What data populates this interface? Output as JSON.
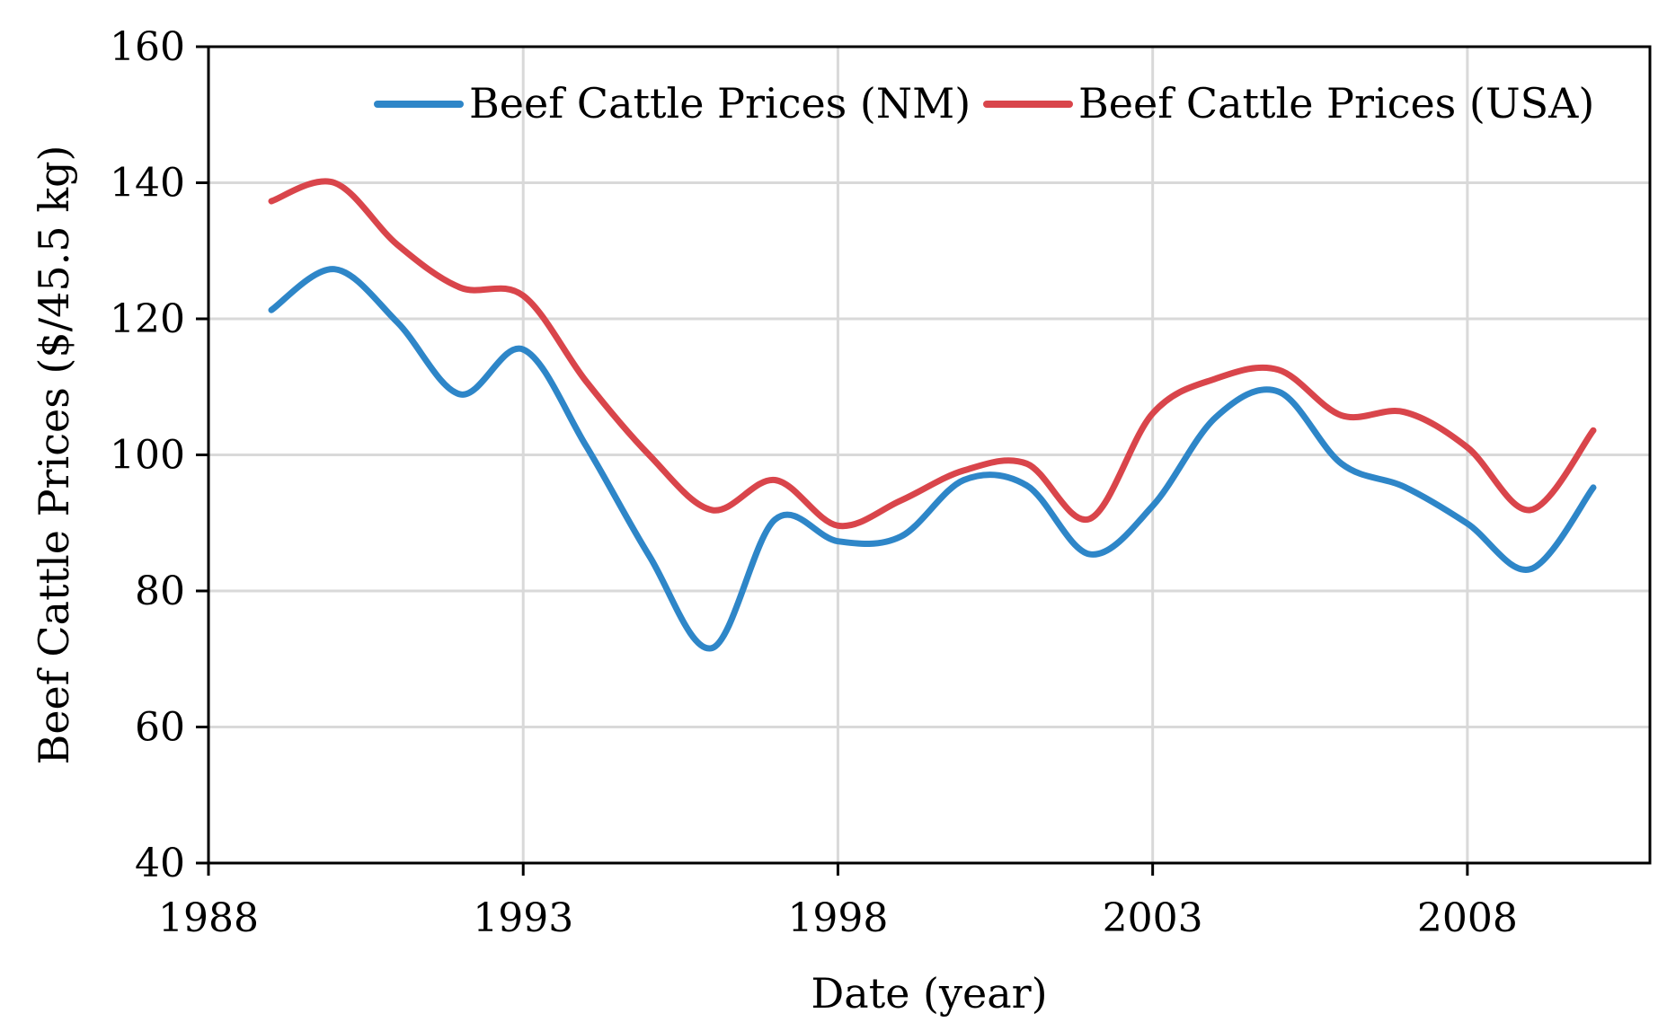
{
  "chart_data": {
    "type": "line",
    "title": "",
    "xlabel": "Date (year)",
    "ylabel": "Beef Cattle Prices ($/45.5 kg)",
    "xlim": [
      1988,
      2010.9
    ],
    "ylim": [
      40,
      160
    ],
    "xticks": [
      1988,
      1993,
      1998,
      2003,
      2008
    ],
    "yticks": [
      40,
      60,
      80,
      100,
      120,
      140,
      160
    ],
    "grid": true,
    "legend_position": "top",
    "x": [
      1989,
      1990,
      1991,
      1992,
      1993,
      1994,
      1995,
      1996,
      1997,
      1998,
      1999,
      2000,
      2001,
      2002,
      2003,
      2004,
      2005,
      2006,
      2007,
      2008,
      2009,
      2010
    ],
    "series": [
      {
        "name": "Beef Cattle Prices (NM)",
        "color": "#2e86c8",
        "values": [
          121.3,
          127.3,
          119.5,
          108.9,
          115.5,
          101.3,
          85.2,
          71.6,
          90.5,
          87.3,
          88.0,
          96.3,
          95.5,
          85.4,
          92.5,
          105.5,
          109.3,
          98.7,
          95.3,
          89.9,
          83.2,
          95.2
        ]
      },
      {
        "name": "Beef Cattle Prices (USA)",
        "color": "#d9454b",
        "values": [
          137.3,
          140.0,
          130.9,
          124.6,
          123.4,
          110.8,
          100.0,
          91.9,
          96.3,
          89.6,
          93.3,
          97.7,
          98.7,
          90.6,
          106.1,
          111.2,
          112.5,
          105.8,
          106.3,
          101.1,
          91.9,
          103.6
        ]
      }
    ]
  }
}
